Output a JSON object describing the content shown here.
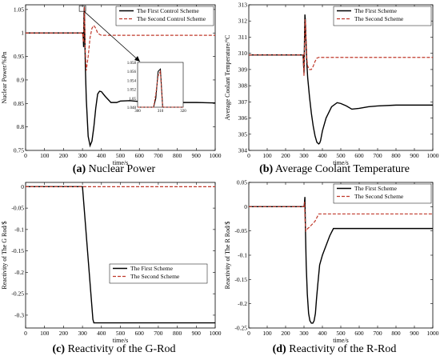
{
  "chart_data": [
    {
      "type": "line",
      "id": "a",
      "caption_letter": "(a)",
      "caption_text": " Nuclear Power",
      "xlabel": "time/s",
      "ylabel": "Nuclear Power/%Pn",
      "xlim": [
        0,
        1000
      ],
      "ylim": [
        0.75,
        1.06
      ],
      "xticks": [
        0,
        100,
        200,
        300,
        400,
        500,
        600,
        700,
        800,
        900,
        1000
      ],
      "yticks": [
        0.75,
        0.8,
        0.85,
        0.9,
        0.95,
        1,
        1.05
      ],
      "legend_position": "top-right",
      "series": [
        {
          "name": "The First Control Scheme",
          "style": "solid",
          "color": "#000000",
          "x": [
            0,
            300,
            303,
            306,
            308,
            310,
            312,
            315,
            320,
            330,
            340,
            350,
            360,
            370,
            380,
            390,
            400,
            420,
            450,
            480,
            500,
            550,
            600,
            650,
            700,
            800,
            900,
            1000
          ],
          "y": [
            1,
            1,
            1.0,
            0.97,
            1.04,
            1.056,
            1.0,
            0.93,
            0.86,
            0.78,
            0.76,
            0.77,
            0.8,
            0.84,
            0.87,
            0.876,
            0.875,
            0.865,
            0.852,
            0.852,
            0.855,
            0.856,
            0.854,
            0.853,
            0.853,
            0.852,
            0.852,
            0.851
          ]
        },
        {
          "name": "The Second Control Scheme",
          "style": "dashed",
          "color": "#c0392b",
          "x": [
            0,
            300,
            305,
            310,
            315,
            320,
            330,
            340,
            350,
            360,
            370,
            380,
            390,
            400,
            450,
            500,
            600,
            700,
            800,
            900,
            1000
          ],
          "y": [
            1,
            1,
            0.98,
            1.055,
            0.96,
            0.92,
            0.95,
            0.99,
            1.01,
            1.016,
            1.01,
            1.0,
            0.997,
            0.995,
            0.995,
            0.995,
            0.995,
            0.995,
            0.995,
            0.995,
            0.995
          ]
        }
      ],
      "inset": {
        "xlim": [
          300,
          320
        ],
        "ylim": [
          1.048,
          1.058
        ],
        "xticks": [
          300,
          310,
          320
        ],
        "yticks": [
          1.048,
          1.05,
          1.052,
          1.054,
          1.056,
          1.058
        ],
        "series": [
          {
            "style": "solid",
            "color": "#000000",
            "x": [
              300,
              307,
              308,
              309,
              310,
              311,
              320
            ],
            "y": [
              1.048,
              1.048,
              1.05,
              1.056,
              1.0565,
              1.048,
              1.048
            ]
          },
          {
            "style": "dashed",
            "color": "#c0392b",
            "x": [
              300,
              307,
              308,
              309,
              310,
              311,
              320
            ],
            "y": [
              1.048,
              1.048,
              1.051,
              1.055,
              1.056,
              1.048,
              1.048
            ]
          }
        ]
      }
    },
    {
      "type": "line",
      "id": "b",
      "caption_letter": "(b)",
      "caption_text": " Average Coolant Temperature",
      "xlabel": "time/s",
      "ylabel": "Average Coolant Temperature/°C",
      "xlim": [
        0,
        1000
      ],
      "ylim": [
        304,
        313
      ],
      "xticks": [
        0,
        100,
        200,
        300,
        400,
        500,
        600,
        700,
        800,
        900,
        1000
      ],
      "yticks": [
        304,
        305,
        306,
        307,
        308,
        309,
        310,
        311,
        312,
        313
      ],
      "legend_position": "top-right",
      "series": [
        {
          "name": "The First Scheme",
          "style": "solid",
          "color": "#000000",
          "x": [
            0,
            290,
            295,
            300,
            303,
            305,
            307,
            310,
            315,
            320,
            330,
            340,
            350,
            360,
            370,
            380,
            385,
            390,
            400,
            420,
            450,
            480,
            500,
            530,
            560,
            600,
            650,
            700,
            800,
            900,
            1000
          ],
          "y": [
            309.9,
            309.9,
            309.9,
            308.8,
            311,
            312.4,
            312.1,
            311,
            309.5,
            308.5,
            307.3,
            306.3,
            305.5,
            304.9,
            304.5,
            304.4,
            304.45,
            304.6,
            305.2,
            306.0,
            306.7,
            306.95,
            306.9,
            306.75,
            306.55,
            306.6,
            306.7,
            306.75,
            306.8,
            306.8,
            306.8
          ]
        },
        {
          "name": "The Second Scheme",
          "style": "dashed",
          "color": "#c0392b",
          "x": [
            0,
            290,
            295,
            300,
            303,
            306,
            309,
            312,
            316,
            320,
            330,
            340,
            350,
            360,
            370,
            380,
            400,
            450,
            500,
            600,
            700,
            800,
            900,
            1000
          ],
          "y": [
            309.9,
            309.9,
            309.9,
            308.6,
            310.5,
            312.1,
            311.8,
            310.6,
            309.6,
            309.2,
            309.0,
            309.0,
            309.2,
            309.5,
            309.7,
            309.75,
            309.75,
            309.75,
            309.75,
            309.75,
            309.75,
            309.75,
            309.75,
            309.75
          ]
        }
      ]
    },
    {
      "type": "line",
      "id": "c",
      "caption_letter": "(c)",
      "caption_text": " Reactivity of the G-Rod",
      "xlabel": "time/s",
      "ylabel": "Reactivity of The G Rod/$",
      "xlim": [
        0,
        1000
      ],
      "ylim": [
        -0.33,
        0.01
      ],
      "xticks": [
        0,
        100,
        200,
        300,
        400,
        500,
        600,
        700,
        800,
        900,
        1000
      ],
      "yticks": [
        0,
        -0.05,
        -0.1,
        -0.15,
        -0.2,
        -0.25,
        -0.3
      ],
      "legend_position": "center-left",
      "series": [
        {
          "name": "The First Scheme",
          "style": "solid",
          "color": "#000000",
          "x": [
            0,
            300,
            355,
            360,
            1000
          ],
          "y": [
            0,
            0,
            -0.31,
            -0.318,
            -0.318
          ]
        },
        {
          "name": "The Second Scheme",
          "style": "dashed",
          "color": "#c0392b",
          "x": [
            0,
            1000
          ],
          "y": [
            0,
            0
          ]
        }
      ]
    },
    {
      "type": "line",
      "id": "d",
      "caption_letter": "(d)",
      "caption_text": " Reactivity of the R-Rod",
      "xlabel": "time/s",
      "ylabel": "Reactivity of The R Rod/$",
      "xlim": [
        0,
        1000
      ],
      "ylim": [
        -0.25,
        0.05
      ],
      "xticks": [
        0,
        100,
        200,
        300,
        400,
        500,
        600,
        700,
        800,
        900,
        1000
      ],
      "yticks": [
        0.05,
        0,
        -0.05,
        -0.1,
        -0.15,
        -0.2,
        -0.25
      ],
      "legend_position": "top-right",
      "series": [
        {
          "name": "The First Scheme",
          "style": "solid",
          "color": "#000000",
          "x": [
            0,
            300,
            302,
            305,
            308,
            312,
            318,
            325,
            332,
            340,
            348,
            355,
            362,
            368,
            375,
            385,
            400,
            420,
            440,
            460,
            470,
            1000
          ],
          "y": [
            0,
            0,
            0.005,
            0.02,
            -0.05,
            -0.12,
            -0.18,
            -0.22,
            -0.235,
            -0.24,
            -0.24,
            -0.235,
            -0.22,
            -0.19,
            -0.16,
            -0.12,
            -0.1,
            -0.08,
            -0.06,
            -0.045,
            -0.045,
            -0.045
          ]
        },
        {
          "name": "The Second Scheme",
          "style": "dashed",
          "color": "#c0392b",
          "x": [
            0,
            300,
            303,
            306,
            310,
            315,
            320,
            330,
            340,
            360,
            380,
            385,
            400,
            1000
          ],
          "y": [
            0,
            0,
            0.01,
            -0.03,
            -0.05,
            -0.048,
            -0.045,
            -0.042,
            -0.038,
            -0.03,
            -0.015,
            -0.015,
            -0.015,
            -0.015
          ]
        }
      ]
    }
  ]
}
